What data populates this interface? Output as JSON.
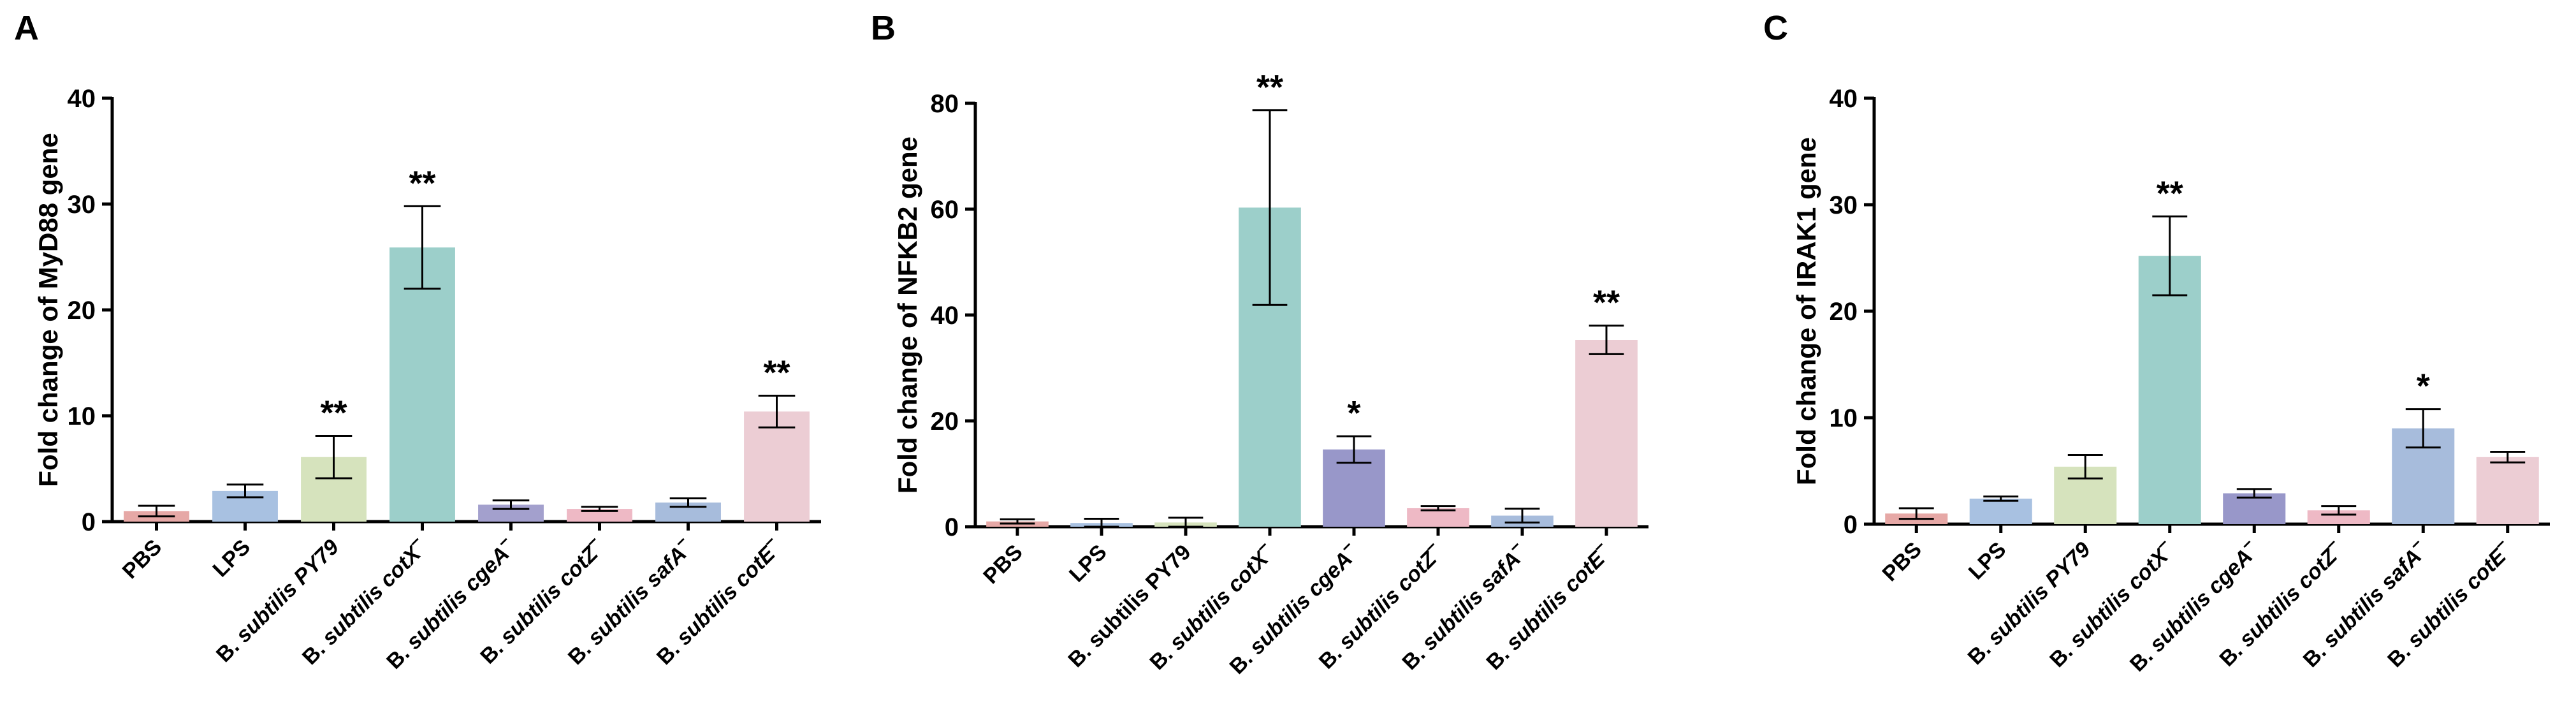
{
  "chart_data": [
    {
      "panel": "A",
      "type": "bar",
      "ylabel": "Fold change of MyD88 gene",
      "ylim": [
        0,
        40
      ],
      "yticks": [
        0,
        10,
        20,
        30,
        40
      ],
      "categories": [
        {
          "prefix": "PBS",
          "italic": "",
          "sup": ""
        },
        {
          "prefix": "LPS",
          "italic": "",
          "sup": ""
        },
        {
          "prefix": "B. ",
          "italic": "subtilis PY79",
          "sup": ""
        },
        {
          "prefix": "B. ",
          "italic": "subtilis cotX",
          "sup": "−"
        },
        {
          "prefix": "B. ",
          "italic": "subtilis cgeA",
          "sup": "−"
        },
        {
          "prefix": "B. ",
          "italic": "subtilis cotZ",
          "sup": "−"
        },
        {
          "prefix": "B. ",
          "italic": "subtilis safA",
          "sup": "−"
        },
        {
          "prefix": "B. ",
          "italic": "subtilis cotE",
          "sup": "−"
        }
      ],
      "values": [
        1.0,
        2.9,
        6.1,
        25.9,
        1.6,
        1.2,
        1.8,
        10.4
      ],
      "errors": [
        0.5,
        0.6,
        2.0,
        3.9,
        0.4,
        0.2,
        0.4,
        1.5
      ],
      "significance": [
        "",
        "",
        "**",
        "**",
        "",
        "",
        "",
        "**"
      ],
      "colors": [
        "#e6a8a6",
        "#a8c1e1",
        "#d6e3bd",
        "#9ccfca",
        "#a3a0cd",
        "#eeb9c5",
        "#a7bcdc",
        "#eccdd4"
      ]
    },
    {
      "panel": "B",
      "type": "bar",
      "ylabel": "Fold change of NFKB2 gene",
      "ylim": [
        0,
        80
      ],
      "yticks": [
        0,
        20,
        40,
        60,
        80
      ],
      "categories": [
        {
          "prefix": "PBS",
          "italic": "",
          "sup": ""
        },
        {
          "prefix": "LPS",
          "italic": "",
          "sup": ""
        },
        {
          "prefix": "B. subtilis PY79",
          "italic": "",
          "sup": ""
        },
        {
          "prefix": "B. ",
          "italic": "subtilis cotX",
          "sup": "−"
        },
        {
          "prefix": "B. ",
          "italic": "subtilis cgeA",
          "sup": "−"
        },
        {
          "prefix": "B. ",
          "italic": "subtilis cotZ",
          "sup": "−"
        },
        {
          "prefix": "B. ",
          "italic": "subtilis safA",
          "sup": "−"
        },
        {
          "prefix": "B. ",
          "italic": "subtilis cotE",
          "sup": "−"
        }
      ],
      "values": [
        1.0,
        0.7,
        0.8,
        60.3,
        14.6,
        3.5,
        2.1,
        35.3
      ],
      "errors": [
        0.4,
        0.8,
        0.9,
        18.4,
        2.5,
        0.4,
        1.3,
        2.7
      ],
      "significance": [
        "",
        "",
        "",
        "**",
        "*",
        "",
        "",
        "**"
      ],
      "colors": [
        "#e6a8a6",
        "#a8c1e1",
        "#d6e3bd",
        "#9ccfca",
        "#9897c9",
        "#eeb9c5",
        "#a7bcdc",
        "#eccdd4"
      ]
    },
    {
      "panel": "C",
      "type": "bar",
      "ylabel": "Fold change of IRAK1 gene",
      "ylim": [
        0,
        40
      ],
      "yticks": [
        0,
        10,
        20,
        30,
        40
      ],
      "categories": [
        {
          "prefix": "PBS",
          "italic": "",
          "sup": ""
        },
        {
          "prefix": "LPS",
          "italic": "",
          "sup": ""
        },
        {
          "prefix": "B. ",
          "italic": "subtilis PY79",
          "sup": ""
        },
        {
          "prefix": "B. ",
          "italic": "subtilis cotX",
          "sup": "−"
        },
        {
          "prefix": "B. ",
          "italic": "subtilis cgeA",
          "sup": "−"
        },
        {
          "prefix": "B. ",
          "italic": "subtilis cotZ",
          "sup": "−"
        },
        {
          "prefix": "B. ",
          "italic": "subtilis safA",
          "sup": "−"
        },
        {
          "prefix": "B. ",
          "italic": "subtilis cotE",
          "sup": "−"
        }
      ],
      "values": [
        1.0,
        2.4,
        5.4,
        25.2,
        2.9,
        1.3,
        9.0,
        6.3
      ],
      "errors": [
        0.5,
        0.2,
        1.1,
        3.7,
        0.4,
        0.4,
        1.8,
        0.5
      ],
      "significance": [
        "",
        "",
        "",
        "**",
        "",
        "",
        "*",
        ""
      ],
      "colors": [
        "#e6a8a6",
        "#a8c1e1",
        "#d6e3bd",
        "#9ccfca",
        "#9897c9",
        "#eeb9c5",
        "#a7bcdc",
        "#eccdd4"
      ]
    }
  ]
}
